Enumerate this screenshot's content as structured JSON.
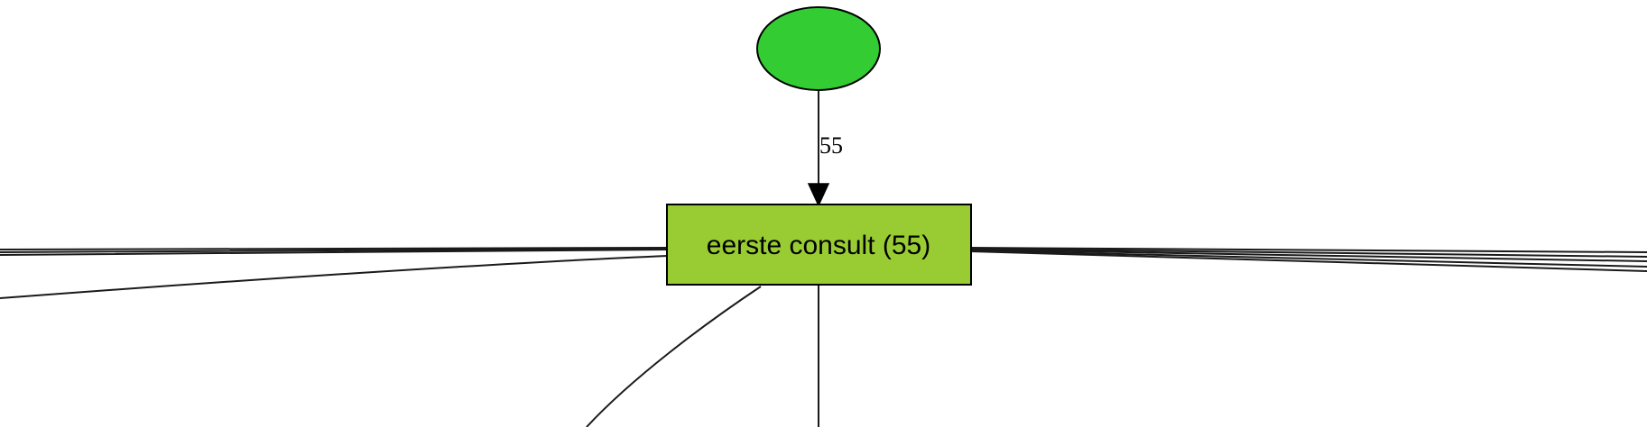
{
  "diagram": {
    "type": "process-map",
    "colors": {
      "start_node_fill": "#33cc33",
      "activity_fill": "#99cc33",
      "stroke": "#000000",
      "background": "#ffffff"
    },
    "nodes": [
      {
        "id": "start",
        "shape": "ellipse",
        "label": ""
      },
      {
        "id": "eerste-consult",
        "shape": "box",
        "label": "eerste consult (55)"
      }
    ],
    "edges": [
      {
        "from": "start",
        "to": "eerste-consult",
        "label": "55"
      }
    ]
  }
}
